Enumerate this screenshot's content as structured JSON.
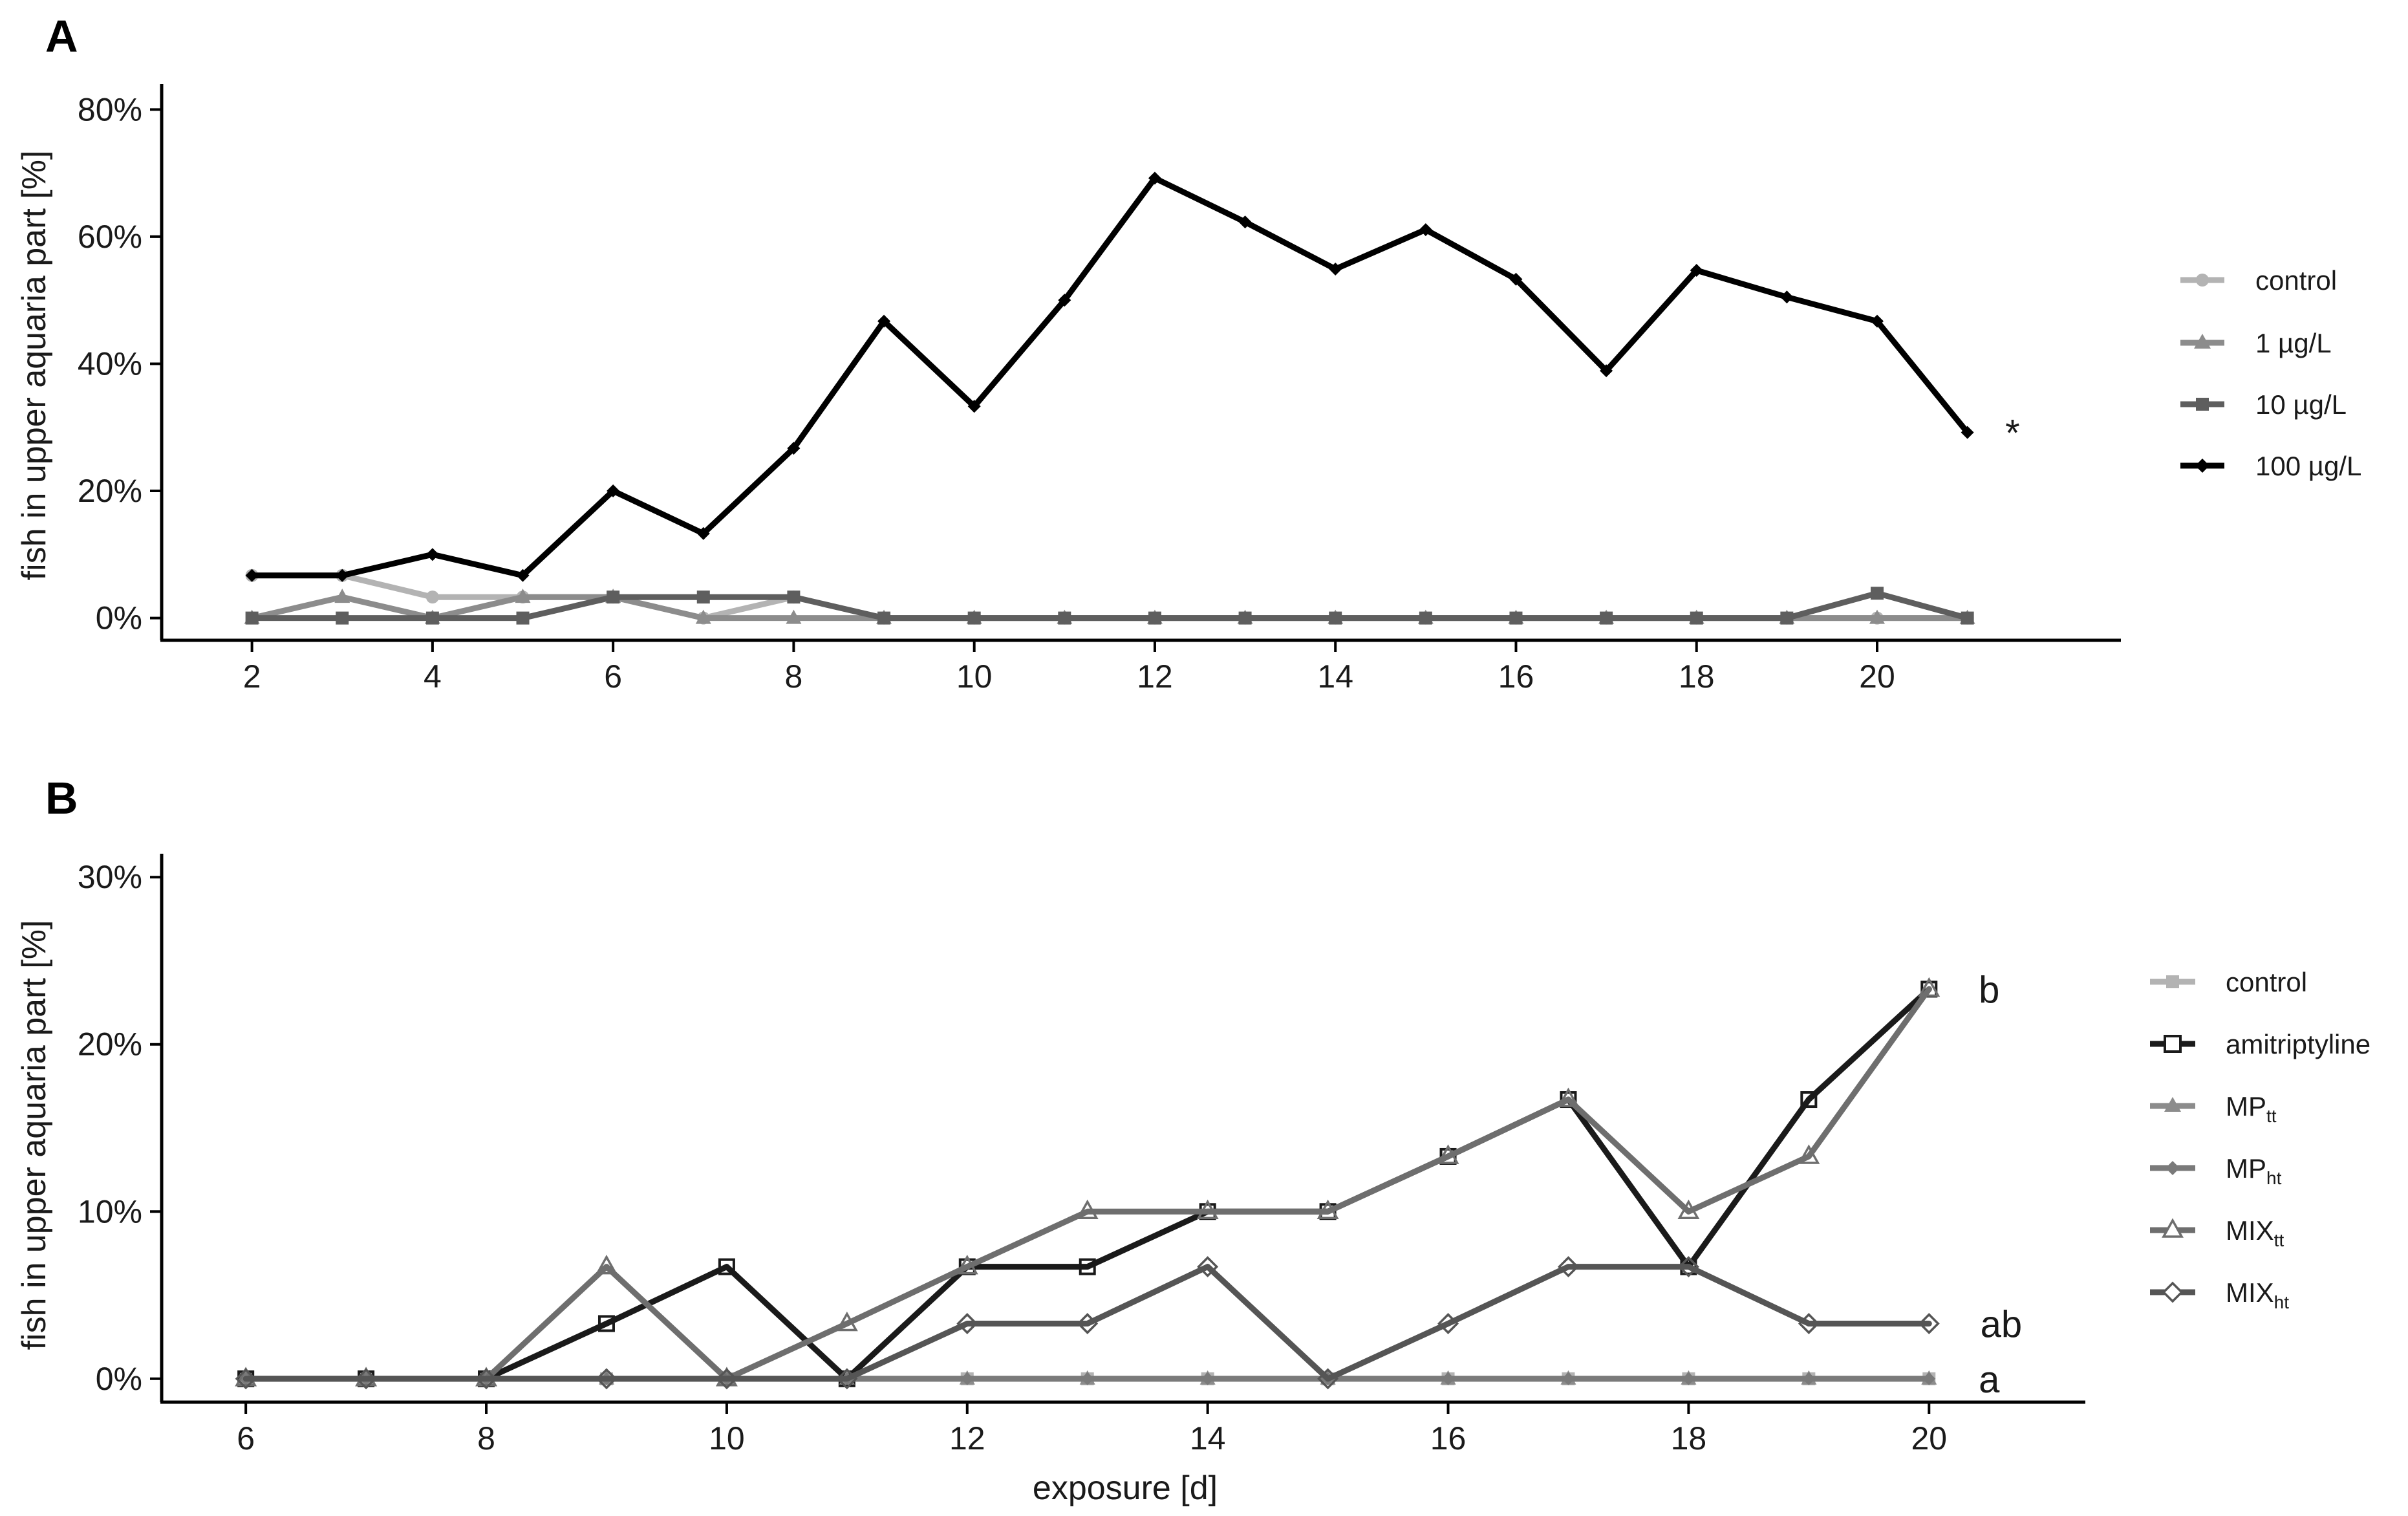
{
  "chart_data": [
    {
      "panel": "A",
      "type": "line",
      "ylabel": "fish in upper aquaria part [%]",
      "xlabel": "",
      "xlim": [
        1,
        22.7
      ],
      "ylim": [
        -3.5,
        84
      ],
      "xticks": [
        2,
        4,
        6,
        8,
        10,
        12,
        14,
        16,
        18,
        20
      ],
      "yticks": [
        {
          "value": 0,
          "label": "0%"
        },
        {
          "value": 20,
          "label": "20%"
        },
        {
          "value": 40,
          "label": "40%"
        },
        {
          "value": 60,
          "label": "60%"
        },
        {
          "value": 80,
          "label": "80%"
        }
      ],
      "legend_position": "right",
      "series": [
        {
          "name": "control",
          "color": "#b3b3b3",
          "marker": "circle",
          "x": [
            2,
            3,
            4,
            5,
            6,
            7,
            8,
            9,
            10,
            11,
            12,
            13,
            14,
            15,
            16,
            17,
            18,
            19,
            20,
            21
          ],
          "y": [
            6.7,
            6.7,
            3.3,
            3.3,
            3.3,
            0,
            3.3,
            0,
            0,
            0,
            0,
            0,
            0,
            0,
            0,
            0,
            0,
            0,
            0,
            0
          ]
        },
        {
          "name": "1 µg/L",
          "color": "#8c8c8c",
          "marker": "triangle",
          "x": [
            2,
            3,
            4,
            5,
            6,
            7,
            8,
            9,
            10,
            11,
            12,
            13,
            14,
            15,
            16,
            17,
            18,
            19,
            20,
            21
          ],
          "y": [
            0,
            3.3,
            0,
            3.3,
            3.3,
            0,
            0,
            0,
            0,
            0,
            0,
            0,
            0,
            0,
            0,
            0,
            0,
            0,
            0,
            0
          ]
        },
        {
          "name": "10 µg/L",
          "color": "#5e5e5e",
          "marker": "square",
          "x": [
            2,
            3,
            4,
            5,
            6,
            7,
            8,
            9,
            10,
            11,
            12,
            13,
            14,
            15,
            16,
            17,
            18,
            19,
            20,
            21
          ],
          "y": [
            0,
            0,
            0,
            0,
            3.3,
            3.3,
            3.3,
            0,
            0,
            0,
            0,
            0,
            0,
            0,
            0,
            0,
            0,
            0,
            3.9,
            0
          ]
        },
        {
          "name": "100 µg/L",
          "color": "#000000",
          "marker": "diamond",
          "x": [
            2,
            3,
            4,
            5,
            6,
            7,
            8,
            9,
            10,
            11,
            12,
            13,
            14,
            15,
            16,
            17,
            18,
            19,
            20,
            21
          ],
          "y": [
            6.7,
            6.7,
            10,
            6.7,
            20,
            13.3,
            26.7,
            46.7,
            33.3,
            50,
            69.2,
            62.3,
            54.9,
            61.1,
            53.3,
            38.9,
            54.7,
            50.5,
            46.7,
            29.2
          ]
        }
      ],
      "annotations": [
        {
          "text": "*",
          "x": 21.5,
          "y": 29.2
        }
      ]
    },
    {
      "panel": "B",
      "type": "line",
      "ylabel": "fish in upper aquaria part [%]",
      "xlabel": "exposure [d]",
      "xlim": [
        5.3,
        21.3
      ],
      "ylim": [
        -1.4,
        31.4
      ],
      "xticks": [
        6,
        8,
        10,
        12,
        14,
        16,
        18,
        20
      ],
      "yticks": [
        {
          "value": 0,
          "label": "0%"
        },
        {
          "value": 10,
          "label": "10%"
        },
        {
          "value": 20,
          "label": "20%"
        },
        {
          "value": 30,
          "label": "30%"
        }
      ],
      "legend_position": "right",
      "series": [
        {
          "name": "control",
          "color": "#b3b3b3",
          "marker": "square-filled",
          "x": [
            6,
            7,
            8,
            9,
            10,
            11,
            12,
            13,
            14,
            15,
            16,
            17,
            18,
            19,
            20
          ],
          "y": [
            0,
            0,
            0,
            0,
            0,
            0,
            0,
            0,
            0,
            0,
            0,
            0,
            0,
            0,
            0
          ]
        },
        {
          "name": "amitriptyline",
          "color": "#1a1a1a",
          "marker": "square-open",
          "x": [
            6,
            7,
            8,
            9,
            10,
            11,
            12,
            13,
            14,
            15,
            16,
            17,
            18,
            19,
            20
          ],
          "y": [
            0,
            0,
            0,
            3.3,
            6.7,
            0,
            6.7,
            6.7,
            10,
            10,
            13.3,
            16.7,
            6.7,
            16.7,
            23.3
          ]
        },
        {
          "name": "MP",
          "sub": "tt",
          "color": "#8c8c8c",
          "marker": "triangle-filled",
          "x": [
            6,
            7,
            8,
            9,
            10,
            11,
            12,
            13,
            14,
            15,
            16,
            17,
            18,
            19,
            20
          ],
          "y": [
            0,
            0,
            0,
            0,
            0,
            0,
            0,
            0,
            0,
            0,
            0,
            0,
            0,
            0,
            0
          ]
        },
        {
          "name": "MP",
          "sub": "ht",
          "color": "#7a7a7a",
          "marker": "diamond-filled",
          "x": [
            6,
            7,
            8,
            9,
            10,
            11,
            12,
            13,
            14,
            15,
            16,
            17,
            18,
            19,
            20
          ],
          "y": [
            0,
            0,
            0,
            0,
            0,
            0,
            0,
            0,
            0,
            0,
            0,
            0,
            0,
            0,
            0
          ]
        },
        {
          "name": "MIX",
          "sub": "tt",
          "color": "#6e6e6e",
          "marker": "triangle-open",
          "x": [
            6,
            7,
            8,
            9,
            10,
            11,
            12,
            13,
            14,
            15,
            16,
            17,
            18,
            19,
            20
          ],
          "y": [
            0,
            0,
            0,
            6.7,
            0,
            3.3,
            6.7,
            10,
            10,
            10,
            13.3,
            16.7,
            10,
            13.3,
            23.3
          ]
        },
        {
          "name": "MIX",
          "sub": "ht",
          "color": "#555555",
          "marker": "diamond-open",
          "x": [
            6,
            7,
            8,
            9,
            10,
            11,
            12,
            13,
            14,
            15,
            16,
            17,
            18,
            19,
            20
          ],
          "y": [
            0,
            0,
            0,
            0,
            0,
            0,
            3.3,
            3.3,
            6.7,
            0,
            3.3,
            6.7,
            6.7,
            3.3,
            3.3
          ]
        }
      ],
      "annotations": [
        {
          "text": "b",
          "x": 20.5,
          "y": 23.3
        },
        {
          "text": "ab",
          "x": 20.6,
          "y": 3.3
        },
        {
          "text": "a",
          "x": 20.5,
          "y": 0
        }
      ]
    }
  ]
}
